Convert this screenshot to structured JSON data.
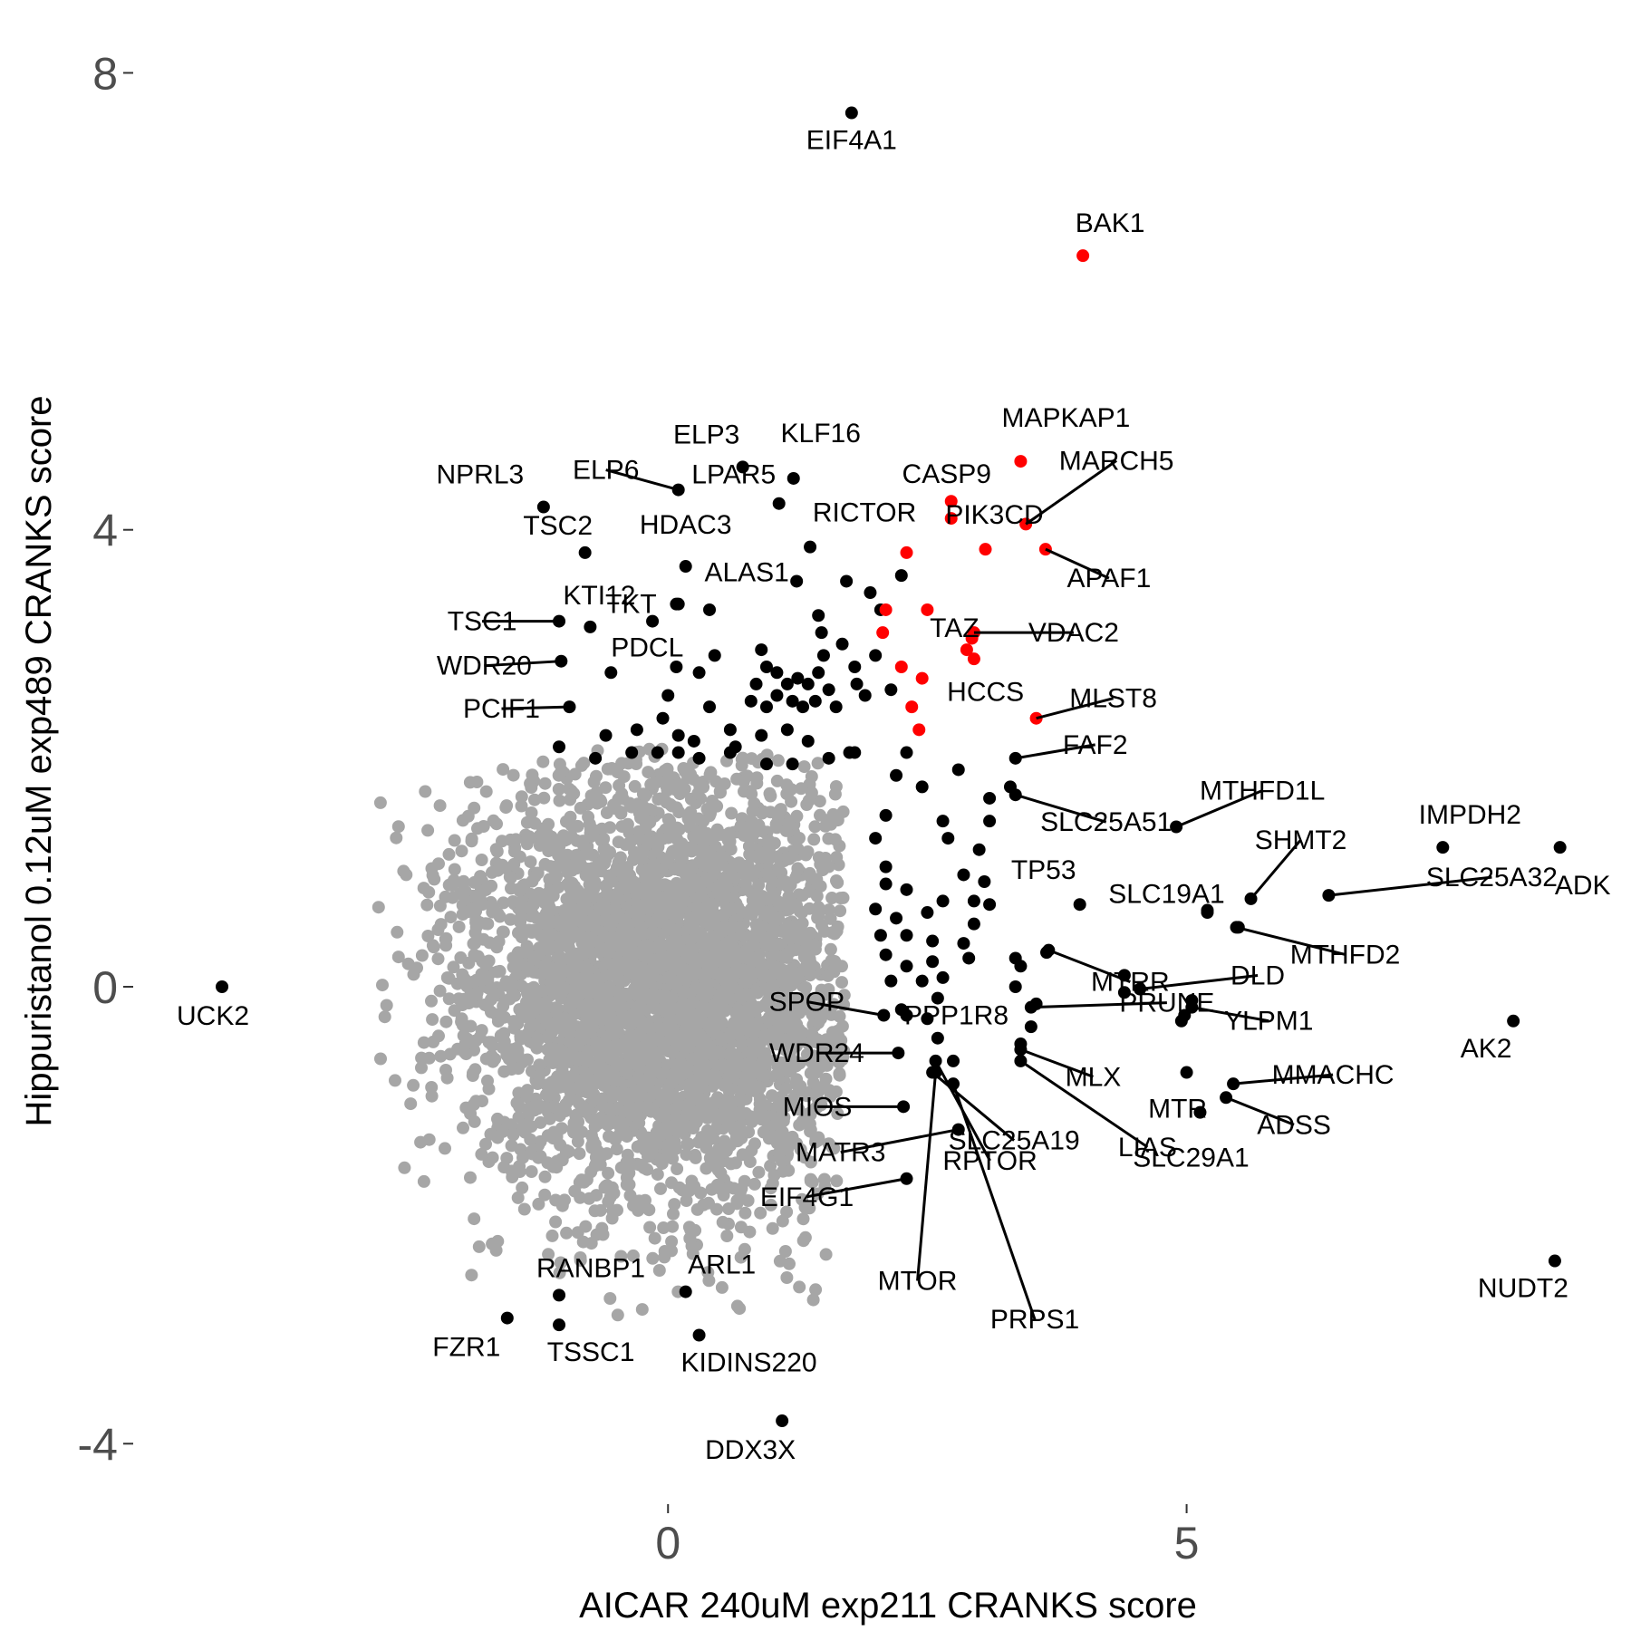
{
  "chart_data": {
    "type": "scatter",
    "xlabel": "AICAR 240uM exp211 CRANKS score",
    "ylabel": "Hippuristanol 0.12uM exp489 CRANKS score",
    "xlim": [
      -5.2,
      8.9
    ],
    "ylim": [
      -4.45,
      8.4
    ],
    "x_ticks": [
      0,
      5
    ],
    "y_ticks": [
      -4,
      0,
      4,
      8
    ],
    "x_tick_labels": [
      "0",
      "5"
    ],
    "y_tick_labels": [
      "-4",
      "0",
      "4",
      "8"
    ],
    "grid": false,
    "colors": {
      "background": "#gray",
      "gray": "#a6a6a6",
      "black": "#000000",
      "red": "#ff0000"
    },
    "background_cloud": {
      "description_count": 4000,
      "center": [
        0.0,
        0.0
      ],
      "sd": [
        1.0,
        0.95
      ],
      "range_x": [
        -2.8,
        1.7
      ],
      "range_y": [
        -2.9,
        2.1
      ]
    },
    "labeled_points": [
      {
        "gene": "EIF4A1",
        "x": 1.77,
        "y": 7.65,
        "color": "black"
      },
      {
        "gene": "BAK1",
        "x": 4.0,
        "y": 6.4,
        "color": "red"
      },
      {
        "gene": "UCK2",
        "x": -4.3,
        "y": 0.0,
        "color": "black"
      },
      {
        "gene": "ELP3",
        "x": 0.72,
        "y": 4.55,
        "color": "black"
      },
      {
        "gene": "KLF16",
        "x": 1.21,
        "y": 4.45,
        "color": "black"
      },
      {
        "gene": "MAPKAP1",
        "x": 3.4,
        "y": 4.6,
        "color": "red"
      },
      {
        "gene": "NPRL3",
        "x": -1.2,
        "y": 4.2,
        "color": "black"
      },
      {
        "gene": "ELP6",
        "x": 0.1,
        "y": 4.35,
        "color": "black"
      },
      {
        "gene": "LPAR5",
        "x": 1.07,
        "y": 4.23,
        "color": "black"
      },
      {
        "gene": "CASP9",
        "x": 2.73,
        "y": 4.25,
        "color": "red"
      },
      {
        "gene": "MARCH5",
        "x": 3.45,
        "y": 4.05,
        "color": "red"
      },
      {
        "gene": "TSC2",
        "x": -0.8,
        "y": 3.8,
        "color": "black"
      },
      {
        "gene": "HDAC3",
        "x": 0.17,
        "y": 3.68,
        "color": "black"
      },
      {
        "gene": "RICTOR",
        "x": 1.37,
        "y": 3.85,
        "color": "black"
      },
      {
        "gene": "PIK3CD",
        "x": 3.06,
        "y": 3.83,
        "color": "red"
      },
      {
        "gene": "APAF1",
        "x": 3.64,
        "y": 3.83,
        "color": "red"
      },
      {
        "gene": "TKT",
        "x": 0.08,
        "y": 3.35,
        "color": "black"
      },
      {
        "gene": "ALAS1",
        "x": 1.24,
        "y": 3.55,
        "color": "black"
      },
      {
        "gene": "TAZ",
        "x": 2.5,
        "y": 3.3,
        "color": "red"
      },
      {
        "gene": "KTI12",
        "x": -0.75,
        "y": 3.15,
        "color": "black"
      },
      {
        "gene": "TSC1",
        "x": -1.05,
        "y": 3.2,
        "color": "black"
      },
      {
        "gene": "VDAC2",
        "x": 2.95,
        "y": 3.1,
        "color": "red"
      },
      {
        "gene": "WDR20",
        "x": -1.03,
        "y": 2.85,
        "color": "black"
      },
      {
        "gene": "PDCL",
        "x": -0.55,
        "y": 2.75,
        "color": "black"
      },
      {
        "gene": "HCCS",
        "x": 2.45,
        "y": 2.7,
        "color": "red"
      },
      {
        "gene": "MLST8",
        "x": 3.55,
        "y": 2.35,
        "color": "red"
      },
      {
        "gene": "PCIF1",
        "x": -0.95,
        "y": 2.45,
        "color": "black"
      },
      {
        "gene": "FAF2",
        "x": 3.35,
        "y": 2.0,
        "color": "black"
      },
      {
        "gene": "SLC25A51",
        "x": 3.35,
        "y": 1.68,
        "color": "black"
      },
      {
        "gene": "MTHFD1L",
        "x": 4.9,
        "y": 1.4,
        "color": "black"
      },
      {
        "gene": "IMPDH2",
        "x": 7.47,
        "y": 1.22,
        "color": "black"
      },
      {
        "gene": "SHMT2",
        "x": 5.62,
        "y": 0.77,
        "color": "black"
      },
      {
        "gene": "TP53",
        "x": 3.97,
        "y": 0.72,
        "color": "black"
      },
      {
        "gene": "SLC19A1",
        "x": 5.2,
        "y": 0.67,
        "color": "black"
      },
      {
        "gene": "SLC25A32",
        "x": 6.37,
        "y": 0.8,
        "color": "black"
      },
      {
        "gene": "ADK",
        "x": 8.6,
        "y": 1.22,
        "color": "black"
      },
      {
        "gene": "MTHFD2",
        "x": 5.48,
        "y": 0.52,
        "color": "black"
      },
      {
        "gene": "MTRR",
        "x": 3.67,
        "y": 0.32,
        "color": "black"
      },
      {
        "gene": "DLD",
        "x": 4.55,
        "y": -0.02,
        "color": "black"
      },
      {
        "gene": "YLPM1",
        "x": 5.05,
        "y": -0.18,
        "color": "black"
      },
      {
        "gene": "SPOP",
        "x": 2.08,
        "y": -0.25,
        "color": "black"
      },
      {
        "gene": "PPP1R8",
        "x": 2.3,
        "y": -0.25,
        "color": "black"
      },
      {
        "gene": "PRUNE",
        "x": 3.5,
        "y": -0.18,
        "color": "black"
      },
      {
        "gene": "AK2",
        "x": 8.15,
        "y": -0.3,
        "color": "black"
      },
      {
        "gene": "WDR24",
        "x": 2.22,
        "y": -0.58,
        "color": "black"
      },
      {
        "gene": "MLX",
        "x": 3.4,
        "y": -0.55,
        "color": "black"
      },
      {
        "gene": "MTR",
        "x": 5.0,
        "y": -0.75,
        "color": "black"
      },
      {
        "gene": "MMACHC",
        "x": 5.45,
        "y": -0.85,
        "color": "black"
      },
      {
        "gene": "MIOS",
        "x": 2.27,
        "y": -1.05,
        "color": "black"
      },
      {
        "gene": "SLC25A19",
        "x": 2.55,
        "y": -0.75,
        "color": "black"
      },
      {
        "gene": "LIAS",
        "x": 3.4,
        "y": -0.65,
        "color": "black"
      },
      {
        "gene": "ADSS",
        "x": 5.38,
        "y": -0.97,
        "color": "black"
      },
      {
        "gene": "SLC29A1",
        "x": 5.13,
        "y": -1.1,
        "color": "black"
      },
      {
        "gene": "MATR3",
        "x": 2.8,
        "y": -1.25,
        "color": "black"
      },
      {
        "gene": "RPTOR",
        "x": 2.58,
        "y": -0.65,
        "color": "black"
      },
      {
        "gene": "EIF4G1",
        "x": 2.3,
        "y": -1.68,
        "color": "black"
      },
      {
        "gene": "MTOR",
        "x": 2.58,
        "y": -0.75,
        "color": "black"
      },
      {
        "gene": "PRPS1",
        "x": 2.75,
        "y": -0.85,
        "color": "black"
      },
      {
        "gene": "NUDT2",
        "x": 8.55,
        "y": -2.4,
        "color": "black"
      },
      {
        "gene": "RANBP1",
        "x": -1.05,
        "y": -2.7,
        "color": "black"
      },
      {
        "gene": "ARL1",
        "x": 0.17,
        "y": -2.67,
        "color": "black"
      },
      {
        "gene": "FZR1",
        "x": -1.55,
        "y": -2.9,
        "color": "black"
      },
      {
        "gene": "TSSC1",
        "x": -1.05,
        "y": -2.96,
        "color": "black"
      },
      {
        "gene": "KIDINS220",
        "x": 0.3,
        "y": -3.05,
        "color": "black"
      },
      {
        "gene": "DDX3X",
        "x": 1.1,
        "y": -3.8,
        "color": "black"
      }
    ],
    "unlabeled_red_points": [
      [
        2.3,
        3.8
      ],
      [
        2.73,
        4.1
      ],
      [
        2.1,
        3.3
      ],
      [
        2.07,
        3.1
      ],
      [
        2.93,
        3.05
      ],
      [
        2.88,
        2.95
      ],
      [
        2.95,
        2.87
      ],
      [
        2.25,
        2.8
      ],
      [
        2.35,
        2.45
      ],
      [
        2.42,
        2.25
      ]
    ],
    "unlabeled_black_points": [
      [
        2.25,
        3.6
      ],
      [
        1.72,
        3.55
      ],
      [
        1.95,
        3.45
      ],
      [
        2.05,
        3.3
      ],
      [
        1.45,
        3.25
      ],
      [
        1.48,
        3.1
      ],
      [
        1.68,
        3.0
      ],
      [
        1.5,
        2.9
      ],
      [
        2.0,
        2.9
      ],
      [
        1.8,
        2.8
      ],
      [
        0.1,
        3.35
      ],
      [
        0.4,
        3.3
      ],
      [
        -0.15,
        3.2
      ],
      [
        0.45,
        2.9
      ],
      [
        0.9,
        2.95
      ],
      [
        0.95,
        2.8
      ],
      [
        0.08,
        2.8
      ],
      [
        0.3,
        2.75
      ],
      [
        0.85,
        2.65
      ],
      [
        1.05,
        2.75
      ],
      [
        1.15,
        2.65
      ],
      [
        1.25,
        2.7
      ],
      [
        1.35,
        2.65
      ],
      [
        1.45,
        2.75
      ],
      [
        1.55,
        2.6
      ],
      [
        1.82,
        2.65
      ],
      [
        1.9,
        2.55
      ],
      [
        2.15,
        2.6
      ],
      [
        0.8,
        2.5
      ],
      [
        0.95,
        2.45
      ],
      [
        1.05,
        2.55
      ],
      [
        1.2,
        2.5
      ],
      [
        1.3,
        2.45
      ],
      [
        1.42,
        2.5
      ],
      [
        1.62,
        2.45
      ],
      [
        0.0,
        2.55
      ],
      [
        0.4,
        2.45
      ],
      [
        -0.05,
        2.35
      ],
      [
        -0.3,
        2.25
      ],
      [
        -0.6,
        2.2
      ],
      [
        0.1,
        2.2
      ],
      [
        0.25,
        2.15
      ],
      [
        0.6,
        2.25
      ],
      [
        0.65,
        2.1
      ],
      [
        0.9,
        2.2
      ],
      [
        1.15,
        2.25
      ],
      [
        1.35,
        2.15
      ],
      [
        1.75,
        2.05
      ],
      [
        2.3,
        2.05
      ],
      [
        -1.05,
        2.1
      ],
      [
        -0.7,
        2.0
      ],
      [
        -0.35,
        2.05
      ],
      [
        -0.1,
        2.05
      ],
      [
        0.1,
        2.05
      ],
      [
        0.3,
        2.0
      ],
      [
        0.6,
        2.05
      ],
      [
        0.95,
        1.95
      ],
      [
        1.2,
        1.95
      ],
      [
        1.55,
        2.0
      ],
      [
        1.8,
        2.05
      ],
      [
        2.2,
        1.85
      ],
      [
        2.45,
        1.75
      ],
      [
        2.8,
        1.9
      ],
      [
        3.1,
        1.65
      ],
      [
        3.3,
        1.75
      ],
      [
        2.1,
        1.5
      ],
      [
        2.65,
        1.45
      ],
      [
        3.1,
        1.45
      ],
      [
        2.0,
        1.3
      ],
      [
        2.7,
        1.3
      ],
      [
        3.0,
        1.2
      ],
      [
        2.1,
        1.05
      ],
      [
        2.85,
        0.98
      ],
      [
        3.05,
        0.92
      ],
      [
        2.1,
        0.9
      ],
      [
        2.3,
        0.85
      ],
      [
        2.65,
        0.75
      ],
      [
        2.95,
        0.75
      ],
      [
        3.1,
        0.72
      ],
      [
        2.0,
        0.68
      ],
      [
        2.2,
        0.6
      ],
      [
        2.5,
        0.65
      ],
      [
        2.95,
        0.55
      ],
      [
        2.05,
        0.45
      ],
      [
        2.3,
        0.45
      ],
      [
        2.55,
        0.4
      ],
      [
        2.85,
        0.38
      ],
      [
        3.35,
        0.25
      ],
      [
        3.65,
        0.3
      ],
      [
        2.1,
        0.28
      ],
      [
        2.3,
        0.18
      ],
      [
        2.55,
        0.22
      ],
      [
        2.9,
        0.25
      ],
      [
        2.15,
        0.05
      ],
      [
        2.45,
        0.05
      ],
      [
        2.65,
        0.08
      ],
      [
        3.35,
        0.0
      ],
      [
        3.4,
        0.18
      ],
      [
        3.55,
        -0.15
      ],
      [
        2.6,
        -0.1
      ],
      [
        2.25,
        -0.2
      ],
      [
        2.5,
        -0.28
      ],
      [
        2.6,
        -0.45
      ],
      [
        2.75,
        -0.65
      ],
      [
        3.5,
        -0.35
      ],
      [
        3.4,
        -0.5
      ],
      [
        4.4,
        0.1
      ],
      [
        4.4,
        -0.05
      ],
      [
        4.98,
        -0.25
      ],
      [
        5.05,
        -0.12
      ],
      [
        4.95,
        -0.3
      ],
      [
        5.2,
        0.65
      ],
      [
        5.5,
        0.52
      ]
    ]
  }
}
